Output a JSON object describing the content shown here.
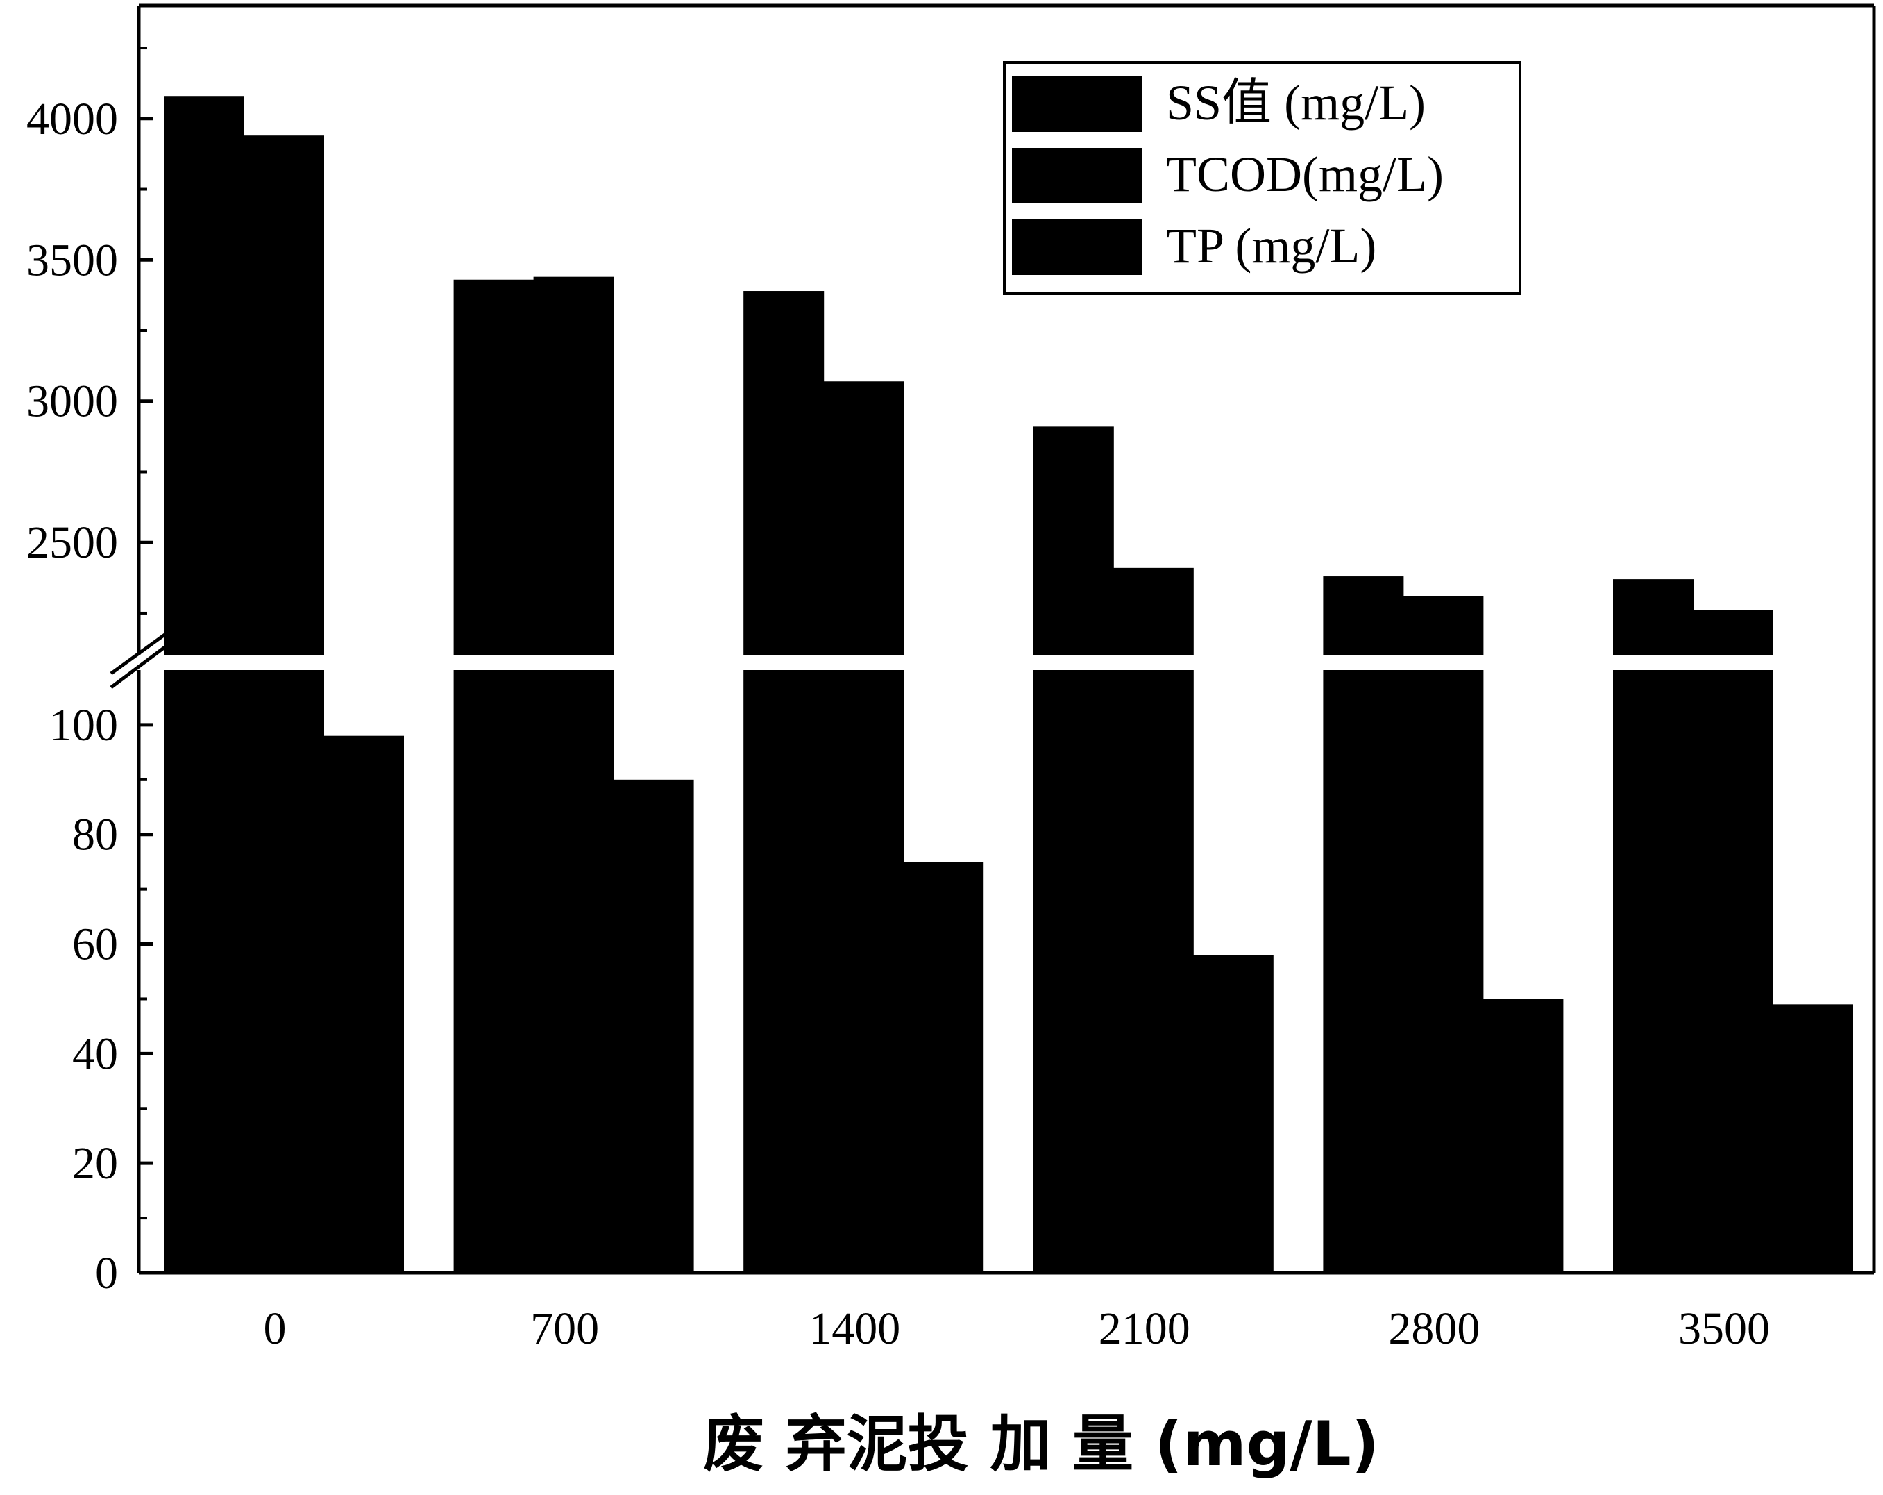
{
  "chart_data": {
    "type": "bar",
    "title": "",
    "xlabel": "废 弃泥投 加 量 (mg/L)",
    "ylabel": "",
    "categories": [
      "0",
      "700",
      "1400",
      "2100",
      "2800",
      "3500"
    ],
    "series": [
      {
        "name": "SS值 (mg/L)",
        "values": [
          4080,
          3430,
          3390,
          2910,
          2380,
          2370
        ]
      },
      {
        "name": "TCOD(mg/L)",
        "values": [
          3940,
          3440,
          3070,
          2410,
          2310,
          2260
        ]
      },
      {
        "name": "TP (mg/L)",
        "values": [
          98,
          90,
          75,
          58,
          50,
          49
        ]
      }
    ],
    "axis_break": {
      "lower_range": [
        0,
        110
      ],
      "upper_range": [
        2100,
        4400
      ]
    },
    "lower_ticks": [
      "0",
      "20",
      "40",
      "60",
      "80",
      "100"
    ],
    "upper_ticks": [
      "2500",
      "3000",
      "3500",
      "4000"
    ],
    "legend_position": "top-right",
    "grid": false,
    "colors": {
      "bars": "#000000",
      "axis": "#000000",
      "background": "#ffffff"
    }
  }
}
